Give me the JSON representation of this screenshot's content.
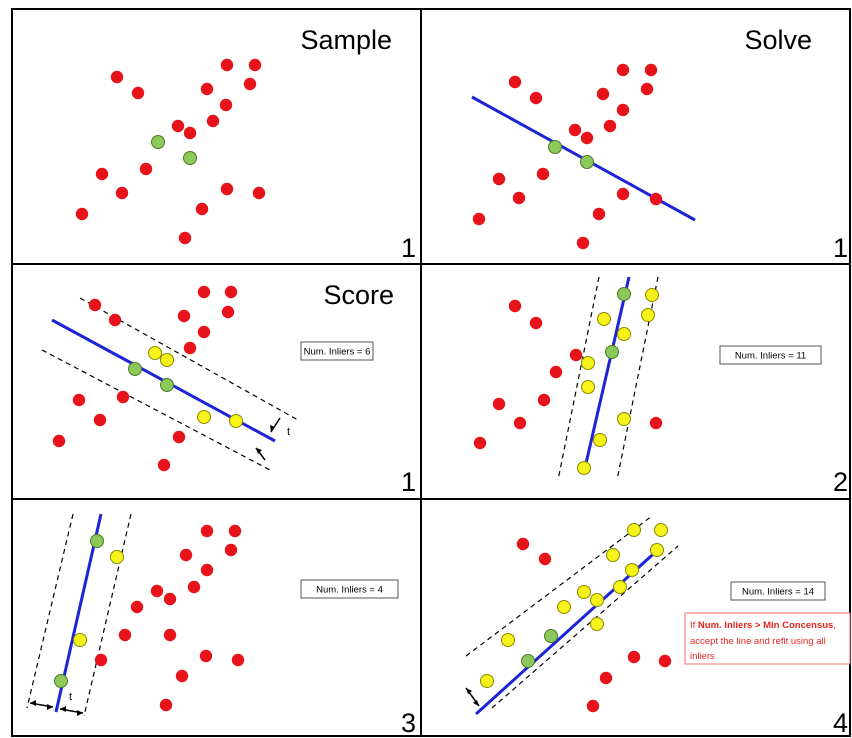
{
  "colors": {
    "outlier": "#e8131a",
    "inlier": "#f7f219",
    "sample": "#8cc85a",
    "model_line": "#1c24d6",
    "threshold": "#000000",
    "note_border": "#ff6a6a",
    "note_text": "#e8251f"
  },
  "panels": [
    {
      "id": "sample",
      "title": "Sample",
      "iteration": "1",
      "inliers_label": ""
    },
    {
      "id": "solve",
      "title": "Solve",
      "iteration": "1",
      "inliers_label": ""
    },
    {
      "id": "score",
      "title": "Score",
      "iteration": "1",
      "inliers_label": "Num. Inliers = 6",
      "threshold_label": "t"
    },
    {
      "id": "iter2",
      "title": "",
      "iteration": "2",
      "inliers_label": "Num. Inliers = 11"
    },
    {
      "id": "iter3",
      "title": "",
      "iteration": "3",
      "inliers_label": "Num. Inliers = 4",
      "threshold_label": "t"
    },
    {
      "id": "iter4",
      "title": "",
      "iteration": "4",
      "inliers_label": "Num. Inliers = 14"
    }
  ],
  "note": {
    "prefix": "If ",
    "bold": "Num. Inliers > Min Concensus",
    "suffix": ",",
    "line2": "accept the line and refit using all",
    "line3": "inliers"
  }
}
